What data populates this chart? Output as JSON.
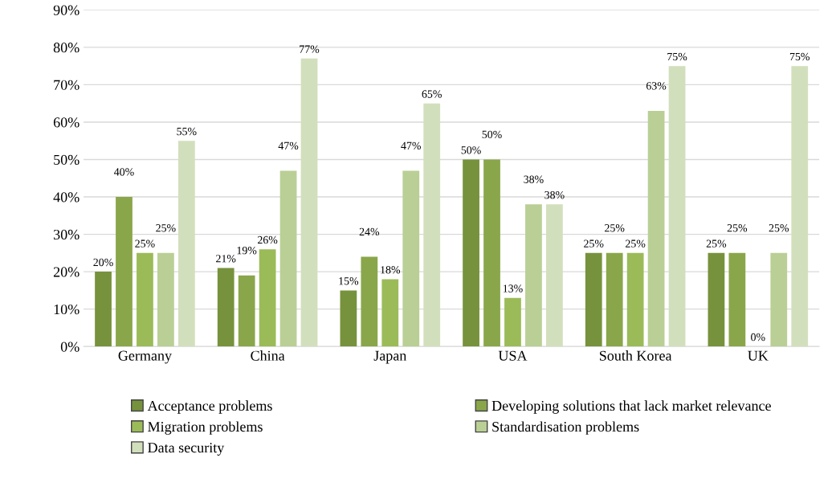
{
  "chart_data": {
    "type": "bar",
    "categories": [
      "Germany",
      "China",
      "Japan",
      "USA",
      "South Korea",
      "UK"
    ],
    "series": [
      {
        "name": "Acceptance problems",
        "color": "#77923c",
        "values": [
          20,
          21,
          15,
          50,
          25,
          25
        ],
        "value_labels": [
          "20%",
          "21%",
          "15%",
          "50%",
          "25%",
          "25%"
        ]
      },
      {
        "name": "Developing solutions that lack market relevance",
        "color": "#8aa64a",
        "values": [
          40,
          19,
          24,
          50,
          25,
          25
        ],
        "value_labels": [
          "40%",
          "19%",
          "24%",
          "50%",
          "25%",
          "25%"
        ]
      },
      {
        "name": "Migration problems",
        "color": "#9bbb59",
        "values": [
          25,
          26,
          18,
          13,
          25,
          0
        ],
        "value_labels": [
          "25%",
          "26%",
          "18%",
          "13%",
          "25%",
          "0%"
        ]
      },
      {
        "name": "Standardisation problems",
        "color": "#bacf95",
        "values": [
          25,
          47,
          47,
          38,
          63,
          25
        ],
        "value_labels": [
          "25%",
          "47%",
          "47%",
          "38%",
          "63%",
          "25%"
        ]
      },
      {
        "name": "Data security",
        "color": "#d2dfbc",
        "values": [
          55,
          77,
          65,
          38,
          75,
          75
        ],
        "value_labels": [
          "55%",
          "77%",
          "65%",
          "38%",
          "75%",
          "75%"
        ]
      }
    ],
    "ylim": [
      0,
      90
    ],
    "yticks": [
      {
        "value": 0,
        "label": "0%"
      },
      {
        "value": 10,
        "label": "10%"
      },
      {
        "value": 20,
        "label": "20%"
      },
      {
        "value": 30,
        "label": "30%"
      },
      {
        "value": 40,
        "label": "40%"
      },
      {
        "value": 50,
        "label": "50%"
      },
      {
        "value": 60,
        "label": "60%"
      },
      {
        "value": 70,
        "label": "70%"
      },
      {
        "value": 80,
        "label": "80%"
      },
      {
        "value": 90,
        "label": "90%"
      }
    ],
    "grid": "y",
    "legend": "bottom"
  }
}
